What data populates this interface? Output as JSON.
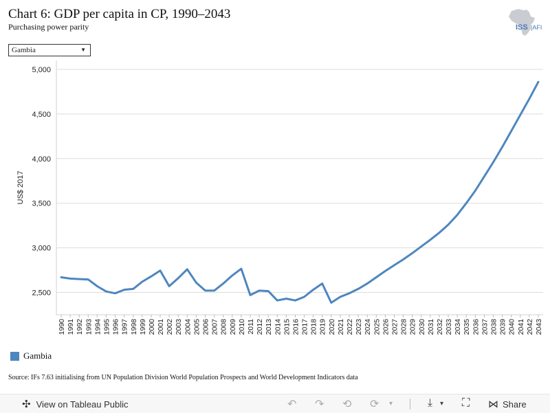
{
  "header": {
    "title": "Chart 6: GDP per capita in CP, 1990–2043",
    "subtitle": "Purchasing power parity",
    "logo_text": "ISS|AFI"
  },
  "filter": {
    "selected": "Gambia"
  },
  "legend": {
    "label": "Gambia",
    "color": "#4e86bf"
  },
  "source": "Source: IFs 7.63 initialising from UN Population Division World Population Prospects and World Development Indicators data",
  "toolbar": {
    "view_label": "View on Tableau Public",
    "share_label": "Share"
  },
  "chart_data": {
    "type": "line",
    "ylabel": "US$ 2017",
    "ylim": [
      2250,
      5100
    ],
    "yticks": [
      2500,
      3000,
      3500,
      4000,
      4500,
      5000
    ],
    "grid": true,
    "x": [
      "1990",
      "1991",
      "1992",
      "1993",
      "1994",
      "1995",
      "1996",
      "1997",
      "1998",
      "1999",
      "2000",
      "2001",
      "2002",
      "2003",
      "2004",
      "2005",
      "2006",
      "2007",
      "2008",
      "2009",
      "2010",
      "2011",
      "2012",
      "2013",
      "2014",
      "2015",
      "2016",
      "2017",
      "2018",
      "2019",
      "2020",
      "2021",
      "2022",
      "2023",
      "2024",
      "2025",
      "2026",
      "2027",
      "2028",
      "2029",
      "2030",
      "2031",
      "2032",
      "2033",
      "2034",
      "2035",
      "2036",
      "2037",
      "2038",
      "2039",
      "2040",
      "2041",
      "2042",
      "2043"
    ],
    "series": [
      {
        "name": "Gambia",
        "color": "#4e86bf",
        "values": [
          2670,
          2655,
          2650,
          2645,
          2570,
          2510,
          2490,
          2530,
          2540,
          2620,
          2680,
          2745,
          2570,
          2660,
          2760,
          2610,
          2520,
          2520,
          2600,
          2690,
          2765,
          2470,
          2520,
          2515,
          2410,
          2430,
          2410,
          2450,
          2530,
          2600,
          2385,
          2450,
          2490,
          2540,
          2600,
          2670,
          2740,
          2805,
          2870,
          2940,
          3015,
          3090,
          3170,
          3260,
          3370,
          3500,
          3640,
          3800,
          3960,
          4130,
          4310,
          4490,
          4670,
          4860
        ]
      }
    ]
  }
}
